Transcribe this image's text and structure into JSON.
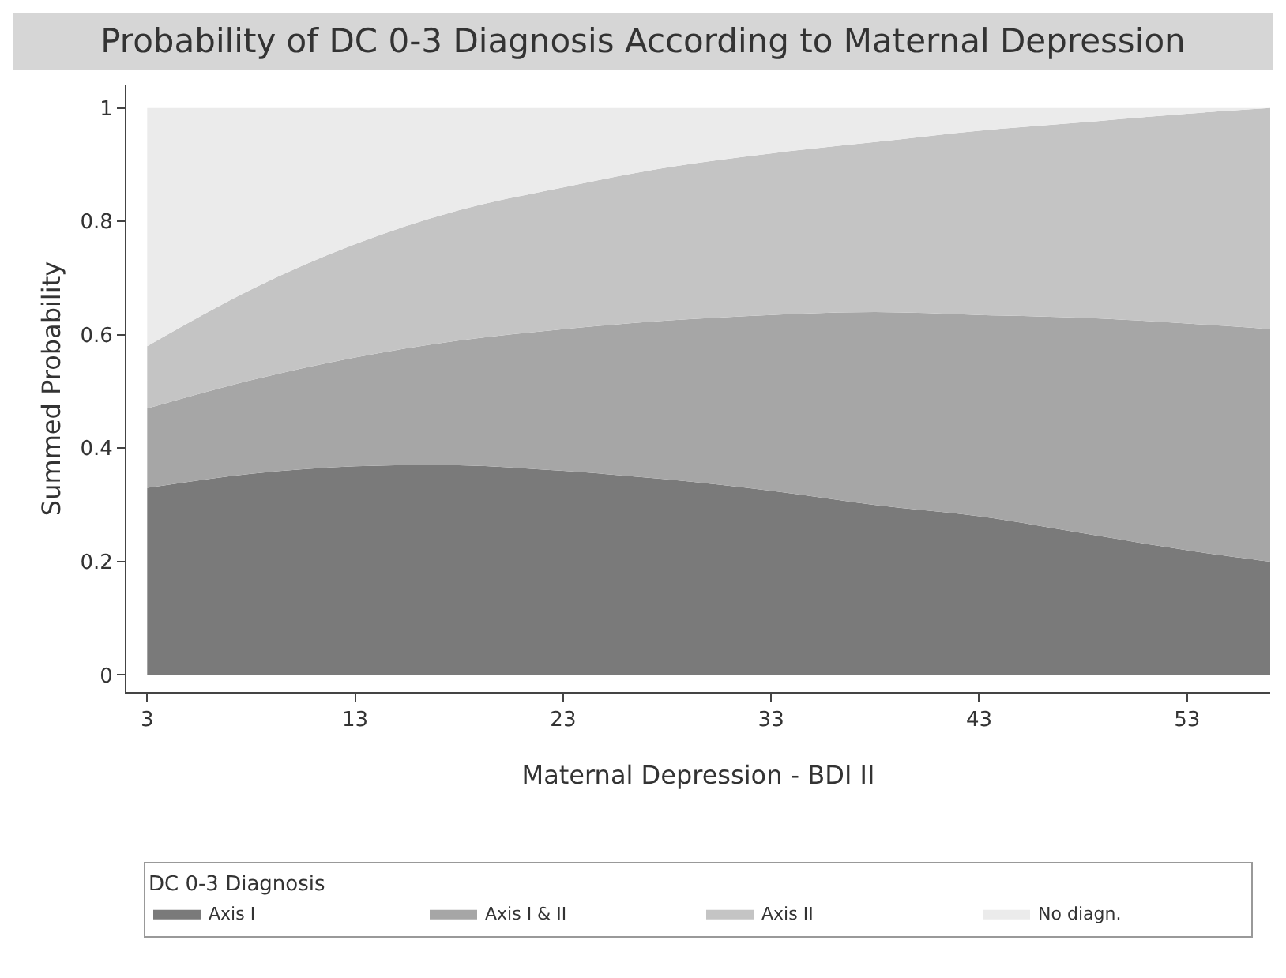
{
  "chart_data": {
    "type": "area",
    "stacked": true,
    "title": "Probability of DC 0-3 Diagnosis According to Maternal Depression",
    "xlabel": "Maternal Depression - BDI II",
    "ylabel": "Summed Probability",
    "legend_title": "DC 0-3 Diagnosis",
    "legend": "bottom",
    "x": [
      3,
      8,
      13,
      18,
      23,
      28,
      33,
      38,
      43,
      48,
      53,
      57
    ],
    "series": [
      {
        "name": "Axis I",
        "color": "#7a7a7a",
        "values": [
          0.33,
          0.355,
          0.368,
          0.37,
          0.36,
          0.345,
          0.325,
          0.3,
          0.28,
          0.25,
          0.22,
          0.2
        ]
      },
      {
        "name": "Axis I & II",
        "color": "#a6a6a6",
        "values": [
          0.14,
          0.165,
          0.192,
          0.22,
          0.25,
          0.28,
          0.31,
          0.34,
          0.355,
          0.38,
          0.4,
          0.41
        ]
      },
      {
        "name": "Axis II",
        "color": "#c4c4c4",
        "values": [
          0.11,
          0.16,
          0.2,
          0.23,
          0.25,
          0.27,
          0.285,
          0.3,
          0.325,
          0.345,
          0.37,
          0.39
        ]
      },
      {
        "name": "No diagn.",
        "color": "#ebebeb",
        "values": [
          0.42,
          0.32,
          0.24,
          0.18,
          0.14,
          0.105,
          0.08,
          0.06,
          0.04,
          0.025,
          0.01,
          0.0
        ]
      }
    ],
    "xlim": [
      2,
      57
    ],
    "xticks": [
      3,
      13,
      23,
      33,
      43,
      53
    ],
    "ylim": [
      -0.03,
      1.04
    ],
    "yticks": [
      0,
      0.2,
      0.4,
      0.6,
      0.8,
      1
    ],
    "grid": false
  }
}
